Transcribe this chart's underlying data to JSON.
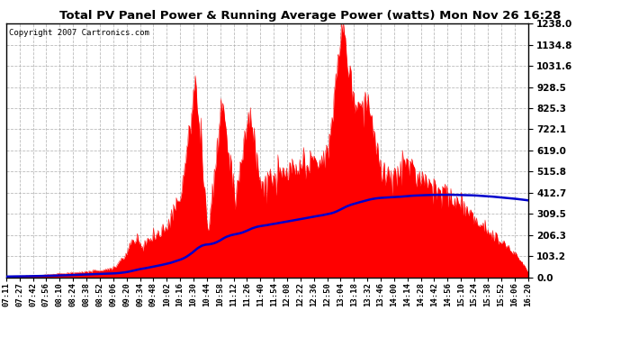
{
  "title": "Total PV Panel Power & Running Average Power (watts) Mon Nov 26 16:28",
  "copyright": "Copyright 2007 Cartronics.com",
  "background_color": "#ffffff",
  "plot_bg_color": "#ffffff",
  "grid_color": "#aaaaaa",
  "fill_color": "#ff0000",
  "line_color": "#0000cc",
  "yticks": [
    0.0,
    103.2,
    206.3,
    309.5,
    412.7,
    515.8,
    619.0,
    722.1,
    825.3,
    928.5,
    1031.6,
    1134.8,
    1238.0
  ],
  "ymax": 1238.0,
  "time_labels": [
    "07:11",
    "07:27",
    "07:42",
    "07:56",
    "08:10",
    "08:24",
    "08:38",
    "08:52",
    "09:06",
    "09:20",
    "09:34",
    "09:48",
    "10:02",
    "10:16",
    "10:30",
    "10:44",
    "10:58",
    "11:12",
    "11:26",
    "11:40",
    "11:54",
    "12:08",
    "12:22",
    "12:36",
    "12:50",
    "13:04",
    "13:18",
    "13:32",
    "13:46",
    "14:00",
    "14:14",
    "14:28",
    "14:42",
    "14:56",
    "15:10",
    "15:24",
    "15:38",
    "15:52",
    "16:06",
    "16:20"
  ],
  "key_power": [
    3,
    5,
    8,
    12,
    18,
    22,
    28,
    35,
    50,
    130,
    160,
    200,
    260,
    430,
    950,
    230,
    870,
    390,
    800,
    440,
    490,
    510,
    530,
    560,
    600,
    1238,
    840,
    870,
    490,
    490,
    560,
    490,
    460,
    390,
    350,
    300,
    230,
    180,
    120,
    30
  ]
}
